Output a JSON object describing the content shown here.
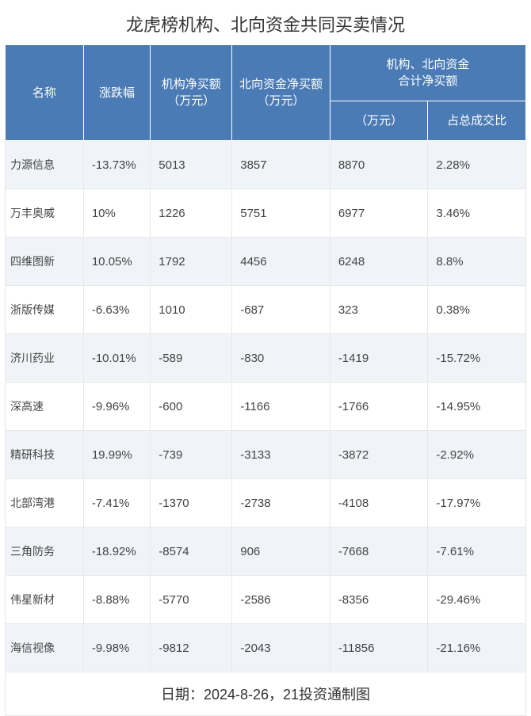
{
  "title": "龙虎榜机构、北向资金共同买卖情况",
  "columns": {
    "name": "名称",
    "change": "涨跌幅",
    "inst_net_buy": "机构净买额（万元）",
    "north_net_buy": "北向资金净买额（万元）",
    "combined_header": "机构、北向资金\n合计净买额",
    "combined_amount": "（万元）",
    "combined_ratio": "占总成交比"
  },
  "rows": [
    {
      "name": "力源信息",
      "change": "-13.73%",
      "inst": "5013",
      "north": "3857",
      "total": "8870",
      "ratio": "2.28%"
    },
    {
      "name": "万丰奥威",
      "change": "10%",
      "inst": "1226",
      "north": "5751",
      "total": "6977",
      "ratio": "3.46%"
    },
    {
      "name": "四维图新",
      "change": "10.05%",
      "inst": "1792",
      "north": "4456",
      "total": "6248",
      "ratio": "8.8%"
    },
    {
      "name": "浙版传媒",
      "change": "-6.63%",
      "inst": "1010",
      "north": "-687",
      "total": "323",
      "ratio": "0.38%"
    },
    {
      "name": "济川药业",
      "change": "-10.01%",
      "inst": "-589",
      "north": "-830",
      "total": "-1419",
      "ratio": "-15.72%"
    },
    {
      "name": "深高速",
      "change": "-9.96%",
      "inst": "-600",
      "north": "-1166",
      "total": "-1766",
      "ratio": "-14.95%"
    },
    {
      "name": "精研科技",
      "change": "19.99%",
      "inst": "-739",
      "north": "-3133",
      "total": "-3872",
      "ratio": "-2.92%"
    },
    {
      "name": "北部湾港",
      "change": "-7.41%",
      "inst": "-1370",
      "north": "-2738",
      "total": "-4108",
      "ratio": "-17.97%"
    },
    {
      "name": "三角防务",
      "change": "-18.92%",
      "inst": "-8574",
      "north": "906",
      "total": "-7668",
      "ratio": "-7.61%"
    },
    {
      "name": "伟星新材",
      "change": "-8.88%",
      "inst": "-5770",
      "north": "-2586",
      "total": "-8356",
      "ratio": "-29.46%"
    },
    {
      "name": "海信视像",
      "change": "-9.98%",
      "inst": "-9812",
      "north": "-2043",
      "total": "-11856",
      "ratio": "-21.16%"
    }
  ],
  "footer": "日期：2024-8-26，21投资通制图",
  "colors": {
    "header_bg": "#4a7bb5",
    "header_text": "#ffffff",
    "row_odd_bg": "#f0f4f9",
    "row_even_bg": "#ffffff",
    "border": "#e8e8e8",
    "text": "#444444"
  }
}
